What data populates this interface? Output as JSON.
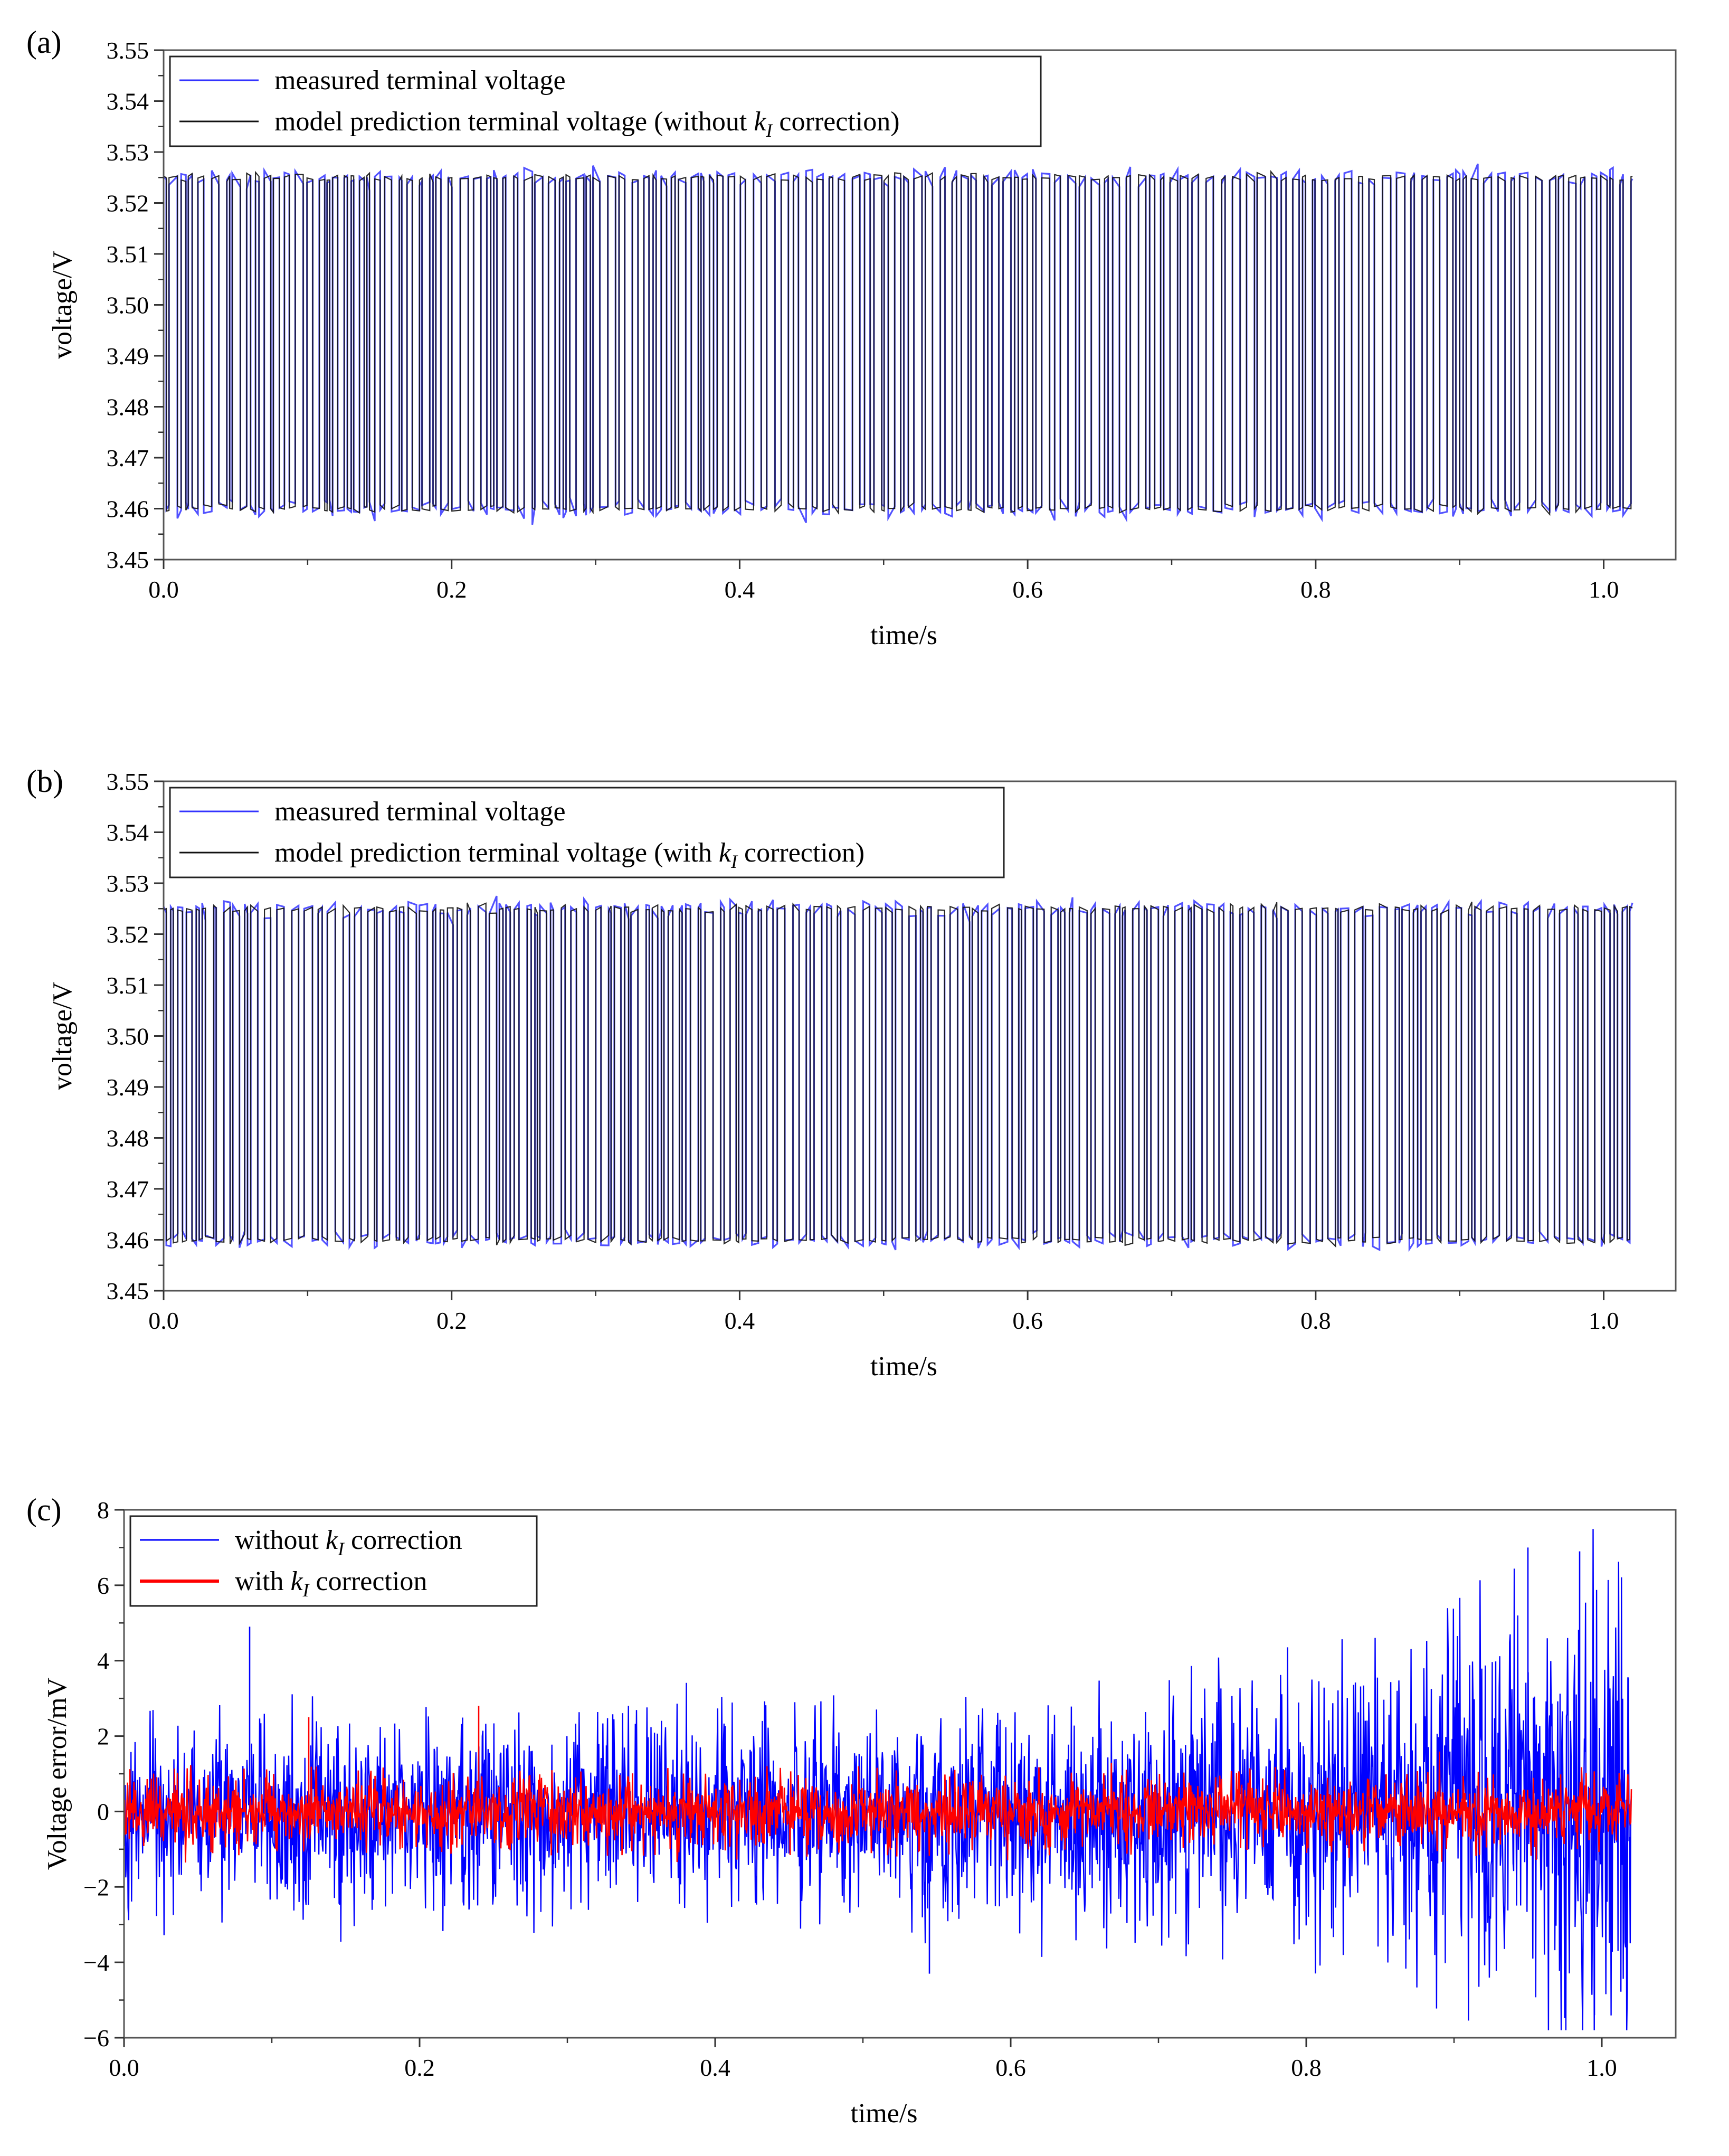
{
  "chart_data": [
    {
      "panel": "(a)",
      "type": "line",
      "xlabel": "time/s",
      "ylabel": "voltage/V",
      "xlim": [
        0.0,
        1.05
      ],
      "ylim": [
        3.45,
        3.55
      ],
      "xticks": [
        "0.0",
        "0.2",
        "0.4",
        "0.6",
        "0.8",
        "1.0"
      ],
      "yticks": [
        "3.45",
        "3.46",
        "3.47",
        "3.48",
        "3.49",
        "3.50",
        "3.51",
        "3.52",
        "3.53",
        "3.54",
        "3.55"
      ],
      "grid": false,
      "legend_position": "top-left",
      "series": [
        {
          "name": "measured terminal voltage",
          "color": "#3333ff",
          "x_range": [
            0.0,
            1.02
          ],
          "upper_level": 3.525,
          "lower_level": 3.46,
          "pattern": "square-wave pulses"
        },
        {
          "name": "model prediction terminal voltage (without k_I correction)",
          "color": "#111111",
          "x_range": [
            0.0,
            1.02
          ],
          "upper_level": 3.525,
          "lower_level": 3.46,
          "pattern": "square-wave pulses"
        }
      ],
      "legend_items": [
        {
          "pre": "measured terminal voltage",
          "k": "",
          "sub": "",
          "post": ""
        },
        {
          "pre": "model prediction terminal voltage (without ",
          "k": "k",
          "sub": "I",
          "post": " correction)"
        }
      ]
    },
    {
      "panel": "(b)",
      "type": "line",
      "xlabel": "time/s",
      "ylabel": "voltage/V",
      "xlim": [
        0.0,
        1.05
      ],
      "ylim": [
        3.45,
        3.55
      ],
      "xticks": [
        "0.0",
        "0.2",
        "0.4",
        "0.6",
        "0.8",
        "1.0"
      ],
      "yticks": [
        "3.45",
        "3.46",
        "3.47",
        "3.48",
        "3.49",
        "3.50",
        "3.51",
        "3.52",
        "3.53",
        "3.54",
        "3.55"
      ],
      "grid": false,
      "legend_position": "top-left",
      "series": [
        {
          "name": "measured terminal voltage",
          "color": "#3333ff",
          "x_range": [
            0.0,
            1.02
          ],
          "upper_level": 3.525,
          "lower_level": 3.46,
          "pattern": "square-wave pulses"
        },
        {
          "name": "model prediction terminal voltage (with k_I correction)",
          "color": "#111111",
          "x_range": [
            0.0,
            1.02
          ],
          "upper_level": 3.525,
          "lower_level": 3.46,
          "pattern": "square-wave pulses"
        }
      ],
      "legend_items": [
        {
          "pre": "measured terminal voltage",
          "k": "",
          "sub": "",
          "post": ""
        },
        {
          "pre": "model prediction terminal voltage (with ",
          "k": "k",
          "sub": "I",
          "post": " correction)"
        }
      ]
    },
    {
      "panel": "(c)",
      "type": "line",
      "xlabel": "time/s",
      "ylabel": "Voltage error/mV",
      "xlim": [
        0.0,
        1.05
      ],
      "ylim": [
        -6,
        8
      ],
      "xticks": [
        "0.0",
        "0.2",
        "0.4",
        "0.6",
        "0.8",
        "1.0"
      ],
      "yticks": [
        "−6",
        "−4",
        "−2",
        "0",
        "2",
        "4",
        "6",
        "8"
      ],
      "grid": false,
      "legend_position": "top-left",
      "series": [
        {
          "name": "without k_I correction",
          "color": "#0000ff",
          "x_range": [
            0.0,
            1.02
          ],
          "amplitude_envelope_mV": [
            [
              0.0,
              2.6
            ],
            [
              0.5,
              2.6
            ],
            [
              0.8,
              3.5
            ],
            [
              1.02,
              6.5
            ]
          ],
          "extreme_spikes": [
            [
              0.085,
              4.9
            ],
            [
              0.545,
              -4.3
            ],
            [
              0.95,
              7.0
            ],
            [
              0.985,
              6.9
            ],
            [
              0.995,
              -5.4
            ]
          ]
        },
        {
          "name": "with k_I correction",
          "color": "#ff0000",
          "x_range": [
            0.0,
            1.02
          ],
          "amplitude_envelope_mV": [
            [
              0.0,
              1.0
            ],
            [
              1.02,
              1.0
            ]
          ],
          "extreme_spikes": [
            [
              0.125,
              2.5
            ],
            [
              0.24,
              2.8
            ]
          ]
        }
      ],
      "legend_items": [
        {
          "pre": "without ",
          "k": "k",
          "sub": "I",
          "post": " correction"
        },
        {
          "pre": "with ",
          "k": "k",
          "sub": "I",
          "post": " correction"
        }
      ]
    }
  ]
}
